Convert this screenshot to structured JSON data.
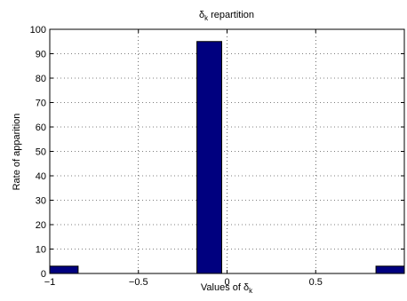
{
  "chart_data": {
    "type": "bar",
    "title": "δk repartition",
    "title_parts": {
      "symbol": "δ",
      "subscript": "k",
      "rest": " repartition"
    },
    "xlabel": "Values of δk",
    "xlabel_parts": {
      "prefix": "Values of ",
      "symbol": "δ",
      "subscript": "k"
    },
    "ylabel": "Rate of apparition",
    "xlim": [
      -1,
      1
    ],
    "ylim": [
      0,
      100
    ],
    "xticks": [
      -1,
      -0.5,
      0,
      0.5
    ],
    "xtick_labels": [
      "−1",
      "−0.5",
      "0",
      "0.5"
    ],
    "yticks": [
      0,
      10,
      20,
      30,
      40,
      50,
      60,
      70,
      80,
      90,
      100
    ],
    "ytick_labels": [
      "0",
      "10",
      "20",
      "30",
      "40",
      "50",
      "60",
      "70",
      "80",
      "90",
      "100"
    ],
    "grid": true,
    "bars": [
      {
        "x0": -1.0,
        "x1": -0.84,
        "value": 3
      },
      {
        "x0": -0.17,
        "x1": -0.03,
        "value": 95
      },
      {
        "x0": 0.84,
        "x1": 1.0,
        "value": 3
      }
    ],
    "colors": {
      "bar_fill": "#00007f",
      "bar_edge": "#000000",
      "grid": "#000000"
    }
  }
}
